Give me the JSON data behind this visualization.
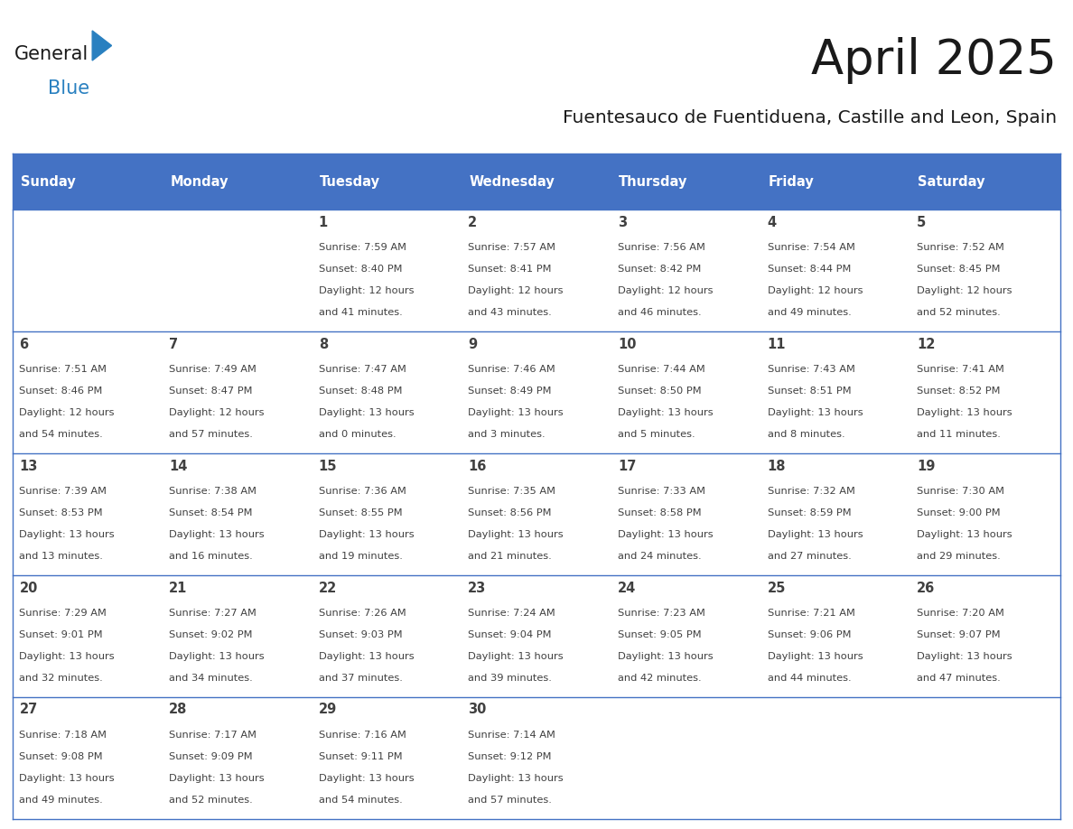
{
  "title": "April 2025",
  "subtitle": "Fuentesauco de Fuentiduena, Castille and Leon, Spain",
  "header_color": "#4472C4",
  "header_text_color": "#FFFFFF",
  "row_bg_odd": "#FFFFFF",
  "row_bg_even": "#FFFFFF",
  "border_color": "#4472C4",
  "text_color": "#404040",
  "days_of_week": [
    "Sunday",
    "Monday",
    "Tuesday",
    "Wednesday",
    "Thursday",
    "Friday",
    "Saturday"
  ],
  "weeks": [
    [
      {
        "day": "",
        "lines": []
      },
      {
        "day": "",
        "lines": []
      },
      {
        "day": "1",
        "lines": [
          "Sunrise: 7:59 AM",
          "Sunset: 8:40 PM",
          "Daylight: 12 hours",
          "and 41 minutes."
        ]
      },
      {
        "day": "2",
        "lines": [
          "Sunrise: 7:57 AM",
          "Sunset: 8:41 PM",
          "Daylight: 12 hours",
          "and 43 minutes."
        ]
      },
      {
        "day": "3",
        "lines": [
          "Sunrise: 7:56 AM",
          "Sunset: 8:42 PM",
          "Daylight: 12 hours",
          "and 46 minutes."
        ]
      },
      {
        "day": "4",
        "lines": [
          "Sunrise: 7:54 AM",
          "Sunset: 8:44 PM",
          "Daylight: 12 hours",
          "and 49 minutes."
        ]
      },
      {
        "day": "5",
        "lines": [
          "Sunrise: 7:52 AM",
          "Sunset: 8:45 PM",
          "Daylight: 12 hours",
          "and 52 minutes."
        ]
      }
    ],
    [
      {
        "day": "6",
        "lines": [
          "Sunrise: 7:51 AM",
          "Sunset: 8:46 PM",
          "Daylight: 12 hours",
          "and 54 minutes."
        ]
      },
      {
        "day": "7",
        "lines": [
          "Sunrise: 7:49 AM",
          "Sunset: 8:47 PM",
          "Daylight: 12 hours",
          "and 57 minutes."
        ]
      },
      {
        "day": "8",
        "lines": [
          "Sunrise: 7:47 AM",
          "Sunset: 8:48 PM",
          "Daylight: 13 hours",
          "and 0 minutes."
        ]
      },
      {
        "day": "9",
        "lines": [
          "Sunrise: 7:46 AM",
          "Sunset: 8:49 PM",
          "Daylight: 13 hours",
          "and 3 minutes."
        ]
      },
      {
        "day": "10",
        "lines": [
          "Sunrise: 7:44 AM",
          "Sunset: 8:50 PM",
          "Daylight: 13 hours",
          "and 5 minutes."
        ]
      },
      {
        "day": "11",
        "lines": [
          "Sunrise: 7:43 AM",
          "Sunset: 8:51 PM",
          "Daylight: 13 hours",
          "and 8 minutes."
        ]
      },
      {
        "day": "12",
        "lines": [
          "Sunrise: 7:41 AM",
          "Sunset: 8:52 PM",
          "Daylight: 13 hours",
          "and 11 minutes."
        ]
      }
    ],
    [
      {
        "day": "13",
        "lines": [
          "Sunrise: 7:39 AM",
          "Sunset: 8:53 PM",
          "Daylight: 13 hours",
          "and 13 minutes."
        ]
      },
      {
        "day": "14",
        "lines": [
          "Sunrise: 7:38 AM",
          "Sunset: 8:54 PM",
          "Daylight: 13 hours",
          "and 16 minutes."
        ]
      },
      {
        "day": "15",
        "lines": [
          "Sunrise: 7:36 AM",
          "Sunset: 8:55 PM",
          "Daylight: 13 hours",
          "and 19 minutes."
        ]
      },
      {
        "day": "16",
        "lines": [
          "Sunrise: 7:35 AM",
          "Sunset: 8:56 PM",
          "Daylight: 13 hours",
          "and 21 minutes."
        ]
      },
      {
        "day": "17",
        "lines": [
          "Sunrise: 7:33 AM",
          "Sunset: 8:58 PM",
          "Daylight: 13 hours",
          "and 24 minutes."
        ]
      },
      {
        "day": "18",
        "lines": [
          "Sunrise: 7:32 AM",
          "Sunset: 8:59 PM",
          "Daylight: 13 hours",
          "and 27 minutes."
        ]
      },
      {
        "day": "19",
        "lines": [
          "Sunrise: 7:30 AM",
          "Sunset: 9:00 PM",
          "Daylight: 13 hours",
          "and 29 minutes."
        ]
      }
    ],
    [
      {
        "day": "20",
        "lines": [
          "Sunrise: 7:29 AM",
          "Sunset: 9:01 PM",
          "Daylight: 13 hours",
          "and 32 minutes."
        ]
      },
      {
        "day": "21",
        "lines": [
          "Sunrise: 7:27 AM",
          "Sunset: 9:02 PM",
          "Daylight: 13 hours",
          "and 34 minutes."
        ]
      },
      {
        "day": "22",
        "lines": [
          "Sunrise: 7:26 AM",
          "Sunset: 9:03 PM",
          "Daylight: 13 hours",
          "and 37 minutes."
        ]
      },
      {
        "day": "23",
        "lines": [
          "Sunrise: 7:24 AM",
          "Sunset: 9:04 PM",
          "Daylight: 13 hours",
          "and 39 minutes."
        ]
      },
      {
        "day": "24",
        "lines": [
          "Sunrise: 7:23 AM",
          "Sunset: 9:05 PM",
          "Daylight: 13 hours",
          "and 42 minutes."
        ]
      },
      {
        "day": "25",
        "lines": [
          "Sunrise: 7:21 AM",
          "Sunset: 9:06 PM",
          "Daylight: 13 hours",
          "and 44 minutes."
        ]
      },
      {
        "day": "26",
        "lines": [
          "Sunrise: 7:20 AM",
          "Sunset: 9:07 PM",
          "Daylight: 13 hours",
          "and 47 minutes."
        ]
      }
    ],
    [
      {
        "day": "27",
        "lines": [
          "Sunrise: 7:18 AM",
          "Sunset: 9:08 PM",
          "Daylight: 13 hours",
          "and 49 minutes."
        ]
      },
      {
        "day": "28",
        "lines": [
          "Sunrise: 7:17 AM",
          "Sunset: 9:09 PM",
          "Daylight: 13 hours",
          "and 52 minutes."
        ]
      },
      {
        "day": "29",
        "lines": [
          "Sunrise: 7:16 AM",
          "Sunset: 9:11 PM",
          "Daylight: 13 hours",
          "and 54 minutes."
        ]
      },
      {
        "day": "30",
        "lines": [
          "Sunrise: 7:14 AM",
          "Sunset: 9:12 PM",
          "Daylight: 13 hours",
          "and 57 minutes."
        ]
      },
      {
        "day": "",
        "lines": []
      },
      {
        "day": "",
        "lines": []
      },
      {
        "day": "",
        "lines": []
      }
    ]
  ],
  "logo_color_general": "#1a1a1a",
  "logo_color_blue": "#2980C0",
  "logo_triangle_color": "#2980C0",
  "title_color": "#1a1a1a",
  "subtitle_color": "#1a1a1a"
}
